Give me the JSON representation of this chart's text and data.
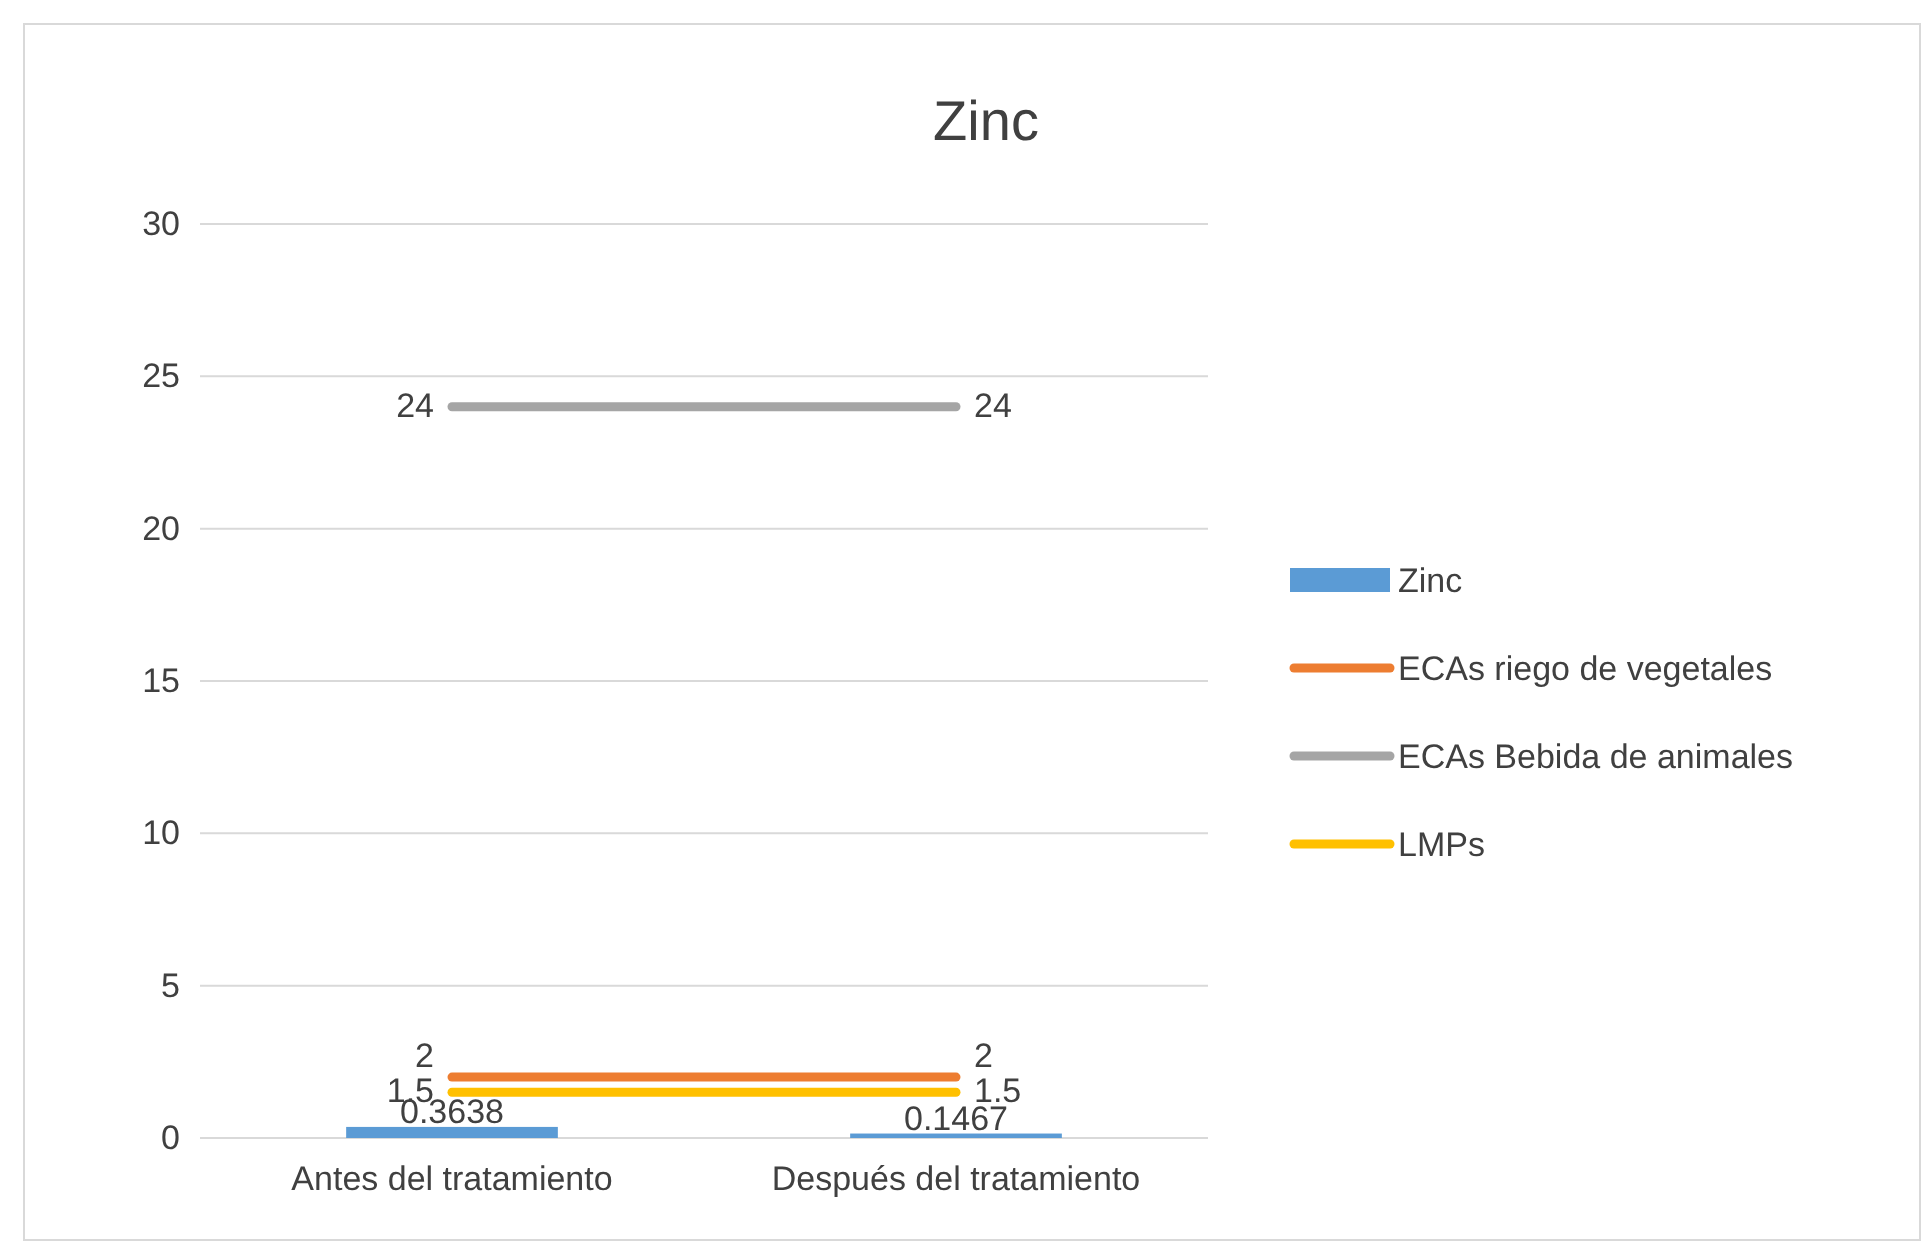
{
  "chart_data": {
    "type": "bar",
    "title": "Zinc",
    "categories": [
      "Antes del tratamiento",
      "Después del tratamiento"
    ],
    "series": [
      {
        "name": "Zinc",
        "color": "#5b9bd5",
        "values": [
          0.3638,
          0.1467
        ]
      },
      {
        "name": "ECAs riego de vegetales",
        "type": "line",
        "color": "#ed7d31",
        "values": [
          2,
          2
        ]
      },
      {
        "name": "ECAs Bebida de animales",
        "type": "line",
        "color": "#a5a5a5",
        "values": [
          24,
          24
        ]
      },
      {
        "name": "LMPs",
        "type": "line",
        "color": "#ffc000",
        "values": [
          1.5,
          1.5
        ]
      }
    ],
    "ylim": [
      0,
      30
    ],
    "yticks": [
      0,
      5,
      10,
      15,
      20,
      25,
      30
    ],
    "grid": "y",
    "legend": "right",
    "data_labels": true
  }
}
